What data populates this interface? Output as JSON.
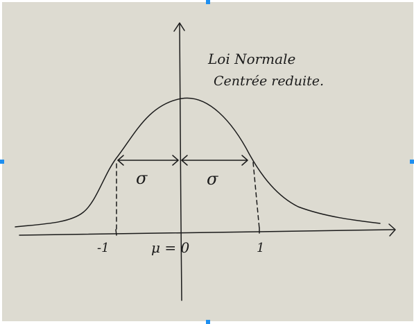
{
  "diagram": {
    "title_line1": "Loi Normale",
    "title_line2": "Centrée reduite.",
    "sigma_left": "σ",
    "sigma_right": "σ",
    "tick_minus_one": "-1",
    "tick_one": "1",
    "mean_label": "μ = 0"
  },
  "colors": {
    "background": "#dddbd1",
    "ink": "#1a1a1a",
    "selection_handle": "#1e8ff0"
  }
}
